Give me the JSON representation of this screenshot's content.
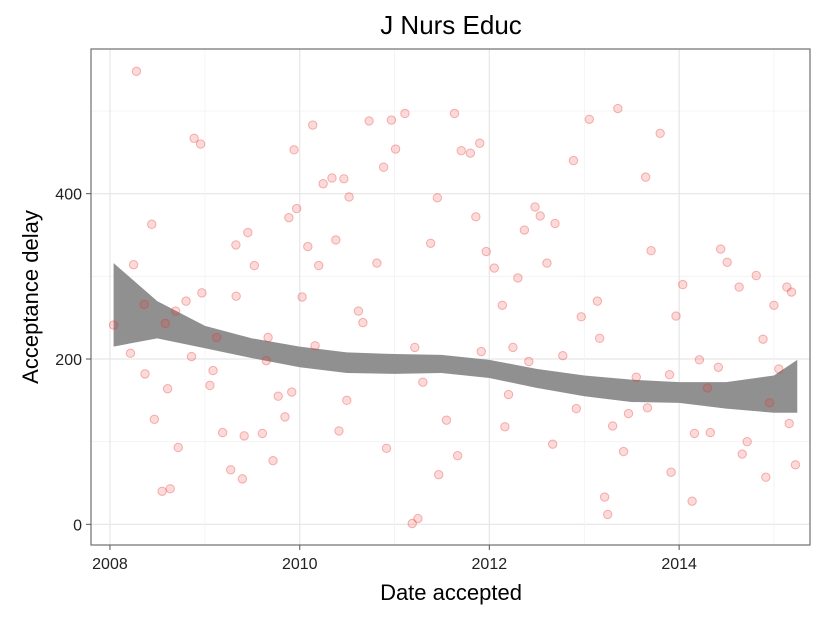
{
  "chart_data": {
    "type": "scatter",
    "title": "J Nurs Educ",
    "xlabel": "Date accepted",
    "ylabel": "Acceptance delay",
    "x_type": "date",
    "xlim": [
      "2007-10-20",
      "2015-05-20"
    ],
    "ylim": [
      -25,
      575
    ],
    "x_ticks": [
      {
        "value": "2008-01-01",
        "label": "2008"
      },
      {
        "value": "2010-01-01",
        "label": "2010"
      },
      {
        "value": "2012-01-01",
        "label": "2012"
      },
      {
        "value": "2014-01-01",
        "label": "2014"
      }
    ],
    "y_ticks": [
      {
        "value": 0,
        "label": "0"
      },
      {
        "value": 200,
        "label": "200"
      },
      {
        "value": 400,
        "label": "400"
      }
    ],
    "grid": true,
    "legend": "none",
    "point_color": "#e8302a",
    "ribbon_color": "#8a8a8a",
    "points": [
      {
        "x": "2008-01-15",
        "y": 241
      },
      {
        "x": "2008-03-20",
        "y": 207
      },
      {
        "x": "2008-04-12",
        "y": 548
      },
      {
        "x": "2008-04-01",
        "y": 314
      },
      {
        "x": "2008-06-10",
        "y": 363
      },
      {
        "x": "2008-05-12",
        "y": 266
      },
      {
        "x": "2008-06-20",
        "y": 127
      },
      {
        "x": "2008-08-10",
        "y": 164
      },
      {
        "x": "2008-08-20",
        "y": 43
      },
      {
        "x": "2008-07-20",
        "y": 40
      },
      {
        "x": "2008-09-10",
        "y": 258
      },
      {
        "x": "2008-10-20",
        "y": 270
      },
      {
        "x": "2008-11-20",
        "y": 467
      },
      {
        "x": "2008-12-15",
        "y": 460
      },
      {
        "x": "2008-12-20",
        "y": 280
      },
      {
        "x": "2009-01-20",
        "y": 168
      },
      {
        "x": "2009-02-15",
        "y": 226
      },
      {
        "x": "2009-03-10",
        "y": 111
      },
      {
        "x": "2009-04-10",
        "y": 66
      },
      {
        "x": "2009-04-30",
        "y": 338
      },
      {
        "x": "2009-05-25",
        "y": 55
      },
      {
        "x": "2009-06-15",
        "y": 353
      },
      {
        "x": "2009-07-10",
        "y": 313
      },
      {
        "x": "2009-08-10",
        "y": 110
      },
      {
        "x": "2009-08-25",
        "y": 198
      },
      {
        "x": "2009-09-20",
        "y": 77
      },
      {
        "x": "2009-10-10",
        "y": 155
      },
      {
        "x": "2009-11-05",
        "y": 130
      },
      {
        "x": "2009-11-20",
        "y": 371
      },
      {
        "x": "2009-12-10",
        "y": 453
      },
      {
        "x": "2009-12-20",
        "y": 382
      },
      {
        "x": "2010-01-10",
        "y": 275
      },
      {
        "x": "2010-02-01",
        "y": 336
      },
      {
        "x": "2010-02-20",
        "y": 483
      },
      {
        "x": "2010-03-15",
        "y": 313
      },
      {
        "x": "2010-04-01",
        "y": 412
      },
      {
        "x": "2010-05-05",
        "y": 419
      },
      {
        "x": "2010-05-20",
        "y": 344
      },
      {
        "x": "2010-06-20",
        "y": 418
      },
      {
        "x": "2010-07-10",
        "y": 396
      },
      {
        "x": "2010-08-15",
        "y": 258
      },
      {
        "x": "2010-09-25",
        "y": 488
      },
      {
        "x": "2010-10-25",
        "y": 316
      },
      {
        "x": "2010-11-20",
        "y": 432
      },
      {
        "x": "2010-12-20",
        "y": 489
      },
      {
        "x": "2011-01-05",
        "y": 454
      },
      {
        "x": "2011-02-10",
        "y": 497
      },
      {
        "x": "2011-03-10",
        "y": 1
      },
      {
        "x": "2011-04-01",
        "y": 7
      },
      {
        "x": "2011-05-20",
        "y": 340
      },
      {
        "x": "2011-06-15",
        "y": 395
      },
      {
        "x": "2011-07-20",
        "y": 126
      },
      {
        "x": "2011-08-20",
        "y": 497
      },
      {
        "x": "2011-09-15",
        "y": 452
      },
      {
        "x": "2011-10-20",
        "y": 449
      },
      {
        "x": "2011-11-10",
        "y": 372
      },
      {
        "x": "2011-11-25",
        "y": 461
      },
      {
        "x": "2011-12-20",
        "y": 330
      },
      {
        "x": "2012-01-20",
        "y": 310
      },
      {
        "x": "2012-02-20",
        "y": 265
      },
      {
        "x": "2012-03-15",
        "y": 157
      },
      {
        "x": "2012-04-20",
        "y": 298
      },
      {
        "x": "2012-05-15",
        "y": 356
      },
      {
        "x": "2012-06-25",
        "y": 384
      },
      {
        "x": "2012-07-15",
        "y": 373
      },
      {
        "x": "2012-08-10",
        "y": 316
      },
      {
        "x": "2012-09-10",
        "y": 364
      },
      {
        "x": "2012-10-10",
        "y": 204
      },
      {
        "x": "2012-11-20",
        "y": 440
      },
      {
        "x": "2012-12-20",
        "y": 251
      },
      {
        "x": "2013-01-20",
        "y": 490
      },
      {
        "x": "2013-02-20",
        "y": 270
      },
      {
        "x": "2013-03-20",
        "y": 33
      },
      {
        "x": "2013-04-01",
        "y": 12
      },
      {
        "x": "2013-05-10",
        "y": 503
      },
      {
        "x": "2013-06-20",
        "y": 134
      },
      {
        "x": "2013-07-20",
        "y": 178
      },
      {
        "x": "2013-08-25",
        "y": 420
      },
      {
        "x": "2013-09-15",
        "y": 331
      },
      {
        "x": "2013-10-20",
        "y": 473
      },
      {
        "x": "2013-11-25",
        "y": 181
      },
      {
        "x": "2013-12-20",
        "y": 252
      },
      {
        "x": "2014-01-15",
        "y": 290
      },
      {
        "x": "2014-02-20",
        "y": 28
      },
      {
        "x": "2014-03-20",
        "y": 199
      },
      {
        "x": "2014-05-01",
        "y": 111
      },
      {
        "x": "2014-06-10",
        "y": 333
      },
      {
        "x": "2014-07-05",
        "y": 317
      },
      {
        "x": "2014-08-20",
        "y": 287
      },
      {
        "x": "2014-09-20",
        "y": 100
      },
      {
        "x": "2014-10-25",
        "y": 301
      },
      {
        "x": "2014-11-20",
        "y": 224
      },
      {
        "x": "2014-12-15",
        "y": 147
      },
      {
        "x": "2015-01-20",
        "y": 188
      },
      {
        "x": "2015-02-20",
        "y": 287
      },
      {
        "x": "2015-03-10",
        "y": 281
      },
      {
        "x": "2015-03-25",
        "y": 72
      },
      {
        "x": "2008-05-15",
        "y": 182
      },
      {
        "x": "2008-09-20",
        "y": 93
      },
      {
        "x": "2008-11-10",
        "y": 203
      },
      {
        "x": "2009-02-01",
        "y": 186
      },
      {
        "x": "2009-06-01",
        "y": 107
      },
      {
        "x": "2009-09-01",
        "y": 226
      },
      {
        "x": "2009-12-01",
        "y": 160
      },
      {
        "x": "2010-03-01",
        "y": 216
      },
      {
        "x": "2010-06-01",
        "y": 113
      },
      {
        "x": "2010-09-01",
        "y": 244
      },
      {
        "x": "2010-12-01",
        "y": 92
      },
      {
        "x": "2011-03-20",
        "y": 214
      },
      {
        "x": "2011-06-20",
        "y": 60
      },
      {
        "x": "2011-09-01",
        "y": 83
      },
      {
        "x": "2011-12-01",
        "y": 209
      },
      {
        "x": "2012-03-01",
        "y": 118
      },
      {
        "x": "2012-06-01",
        "y": 197
      },
      {
        "x": "2012-09-01",
        "y": 97
      },
      {
        "x": "2012-12-01",
        "y": 140
      },
      {
        "x": "2013-03-01",
        "y": 225
      },
      {
        "x": "2013-06-01",
        "y": 88
      },
      {
        "x": "2013-09-01",
        "y": 141
      },
      {
        "x": "2013-12-01",
        "y": 63
      },
      {
        "x": "2014-03-01",
        "y": 110
      },
      {
        "x": "2014-06-01",
        "y": 190
      },
      {
        "x": "2014-09-01",
        "y": 85
      },
      {
        "x": "2014-12-01",
        "y": 57
      },
      {
        "x": "2015-03-01",
        "y": 122
      },
      {
        "x": "2008-08-01",
        "y": 243
      },
      {
        "x": "2009-05-01",
        "y": 276
      },
      {
        "x": "2010-07-01",
        "y": 150
      },
      {
        "x": "2011-04-20",
        "y": 172
      },
      {
        "x": "2012-04-01",
        "y": 214
      },
      {
        "x": "2013-04-20",
        "y": 119
      },
      {
        "x": "2014-04-20",
        "y": 165
      },
      {
        "x": "2015-01-01",
        "y": 265
      }
    ],
    "smooth": [
      {
        "x": "2008-01-15",
        "lower": 215,
        "upper": 316
      },
      {
        "x": "2008-07-01",
        "lower": 225,
        "upper": 270
      },
      {
        "x": "2009-01-01",
        "lower": 213,
        "upper": 240
      },
      {
        "x": "2009-07-01",
        "lower": 201,
        "upper": 225
      },
      {
        "x": "2010-01-01",
        "lower": 190,
        "upper": 215
      },
      {
        "x": "2010-07-01",
        "lower": 183,
        "upper": 208
      },
      {
        "x": "2011-01-01",
        "lower": 182,
        "upper": 206
      },
      {
        "x": "2011-07-01",
        "lower": 183,
        "upper": 205
      },
      {
        "x": "2012-01-01",
        "lower": 177,
        "upper": 199
      },
      {
        "x": "2012-07-01",
        "lower": 165,
        "upper": 188
      },
      {
        "x": "2013-01-01",
        "lower": 155,
        "upper": 180
      },
      {
        "x": "2013-07-01",
        "lower": 148,
        "upper": 175
      },
      {
        "x": "2014-01-01",
        "lower": 147,
        "upper": 172
      },
      {
        "x": "2014-07-01",
        "lower": 140,
        "upper": 172
      },
      {
        "x": "2015-01-01",
        "lower": 135,
        "upper": 180
      },
      {
        "x": "2015-04-01",
        "lower": 135,
        "upper": 199
      }
    ]
  }
}
